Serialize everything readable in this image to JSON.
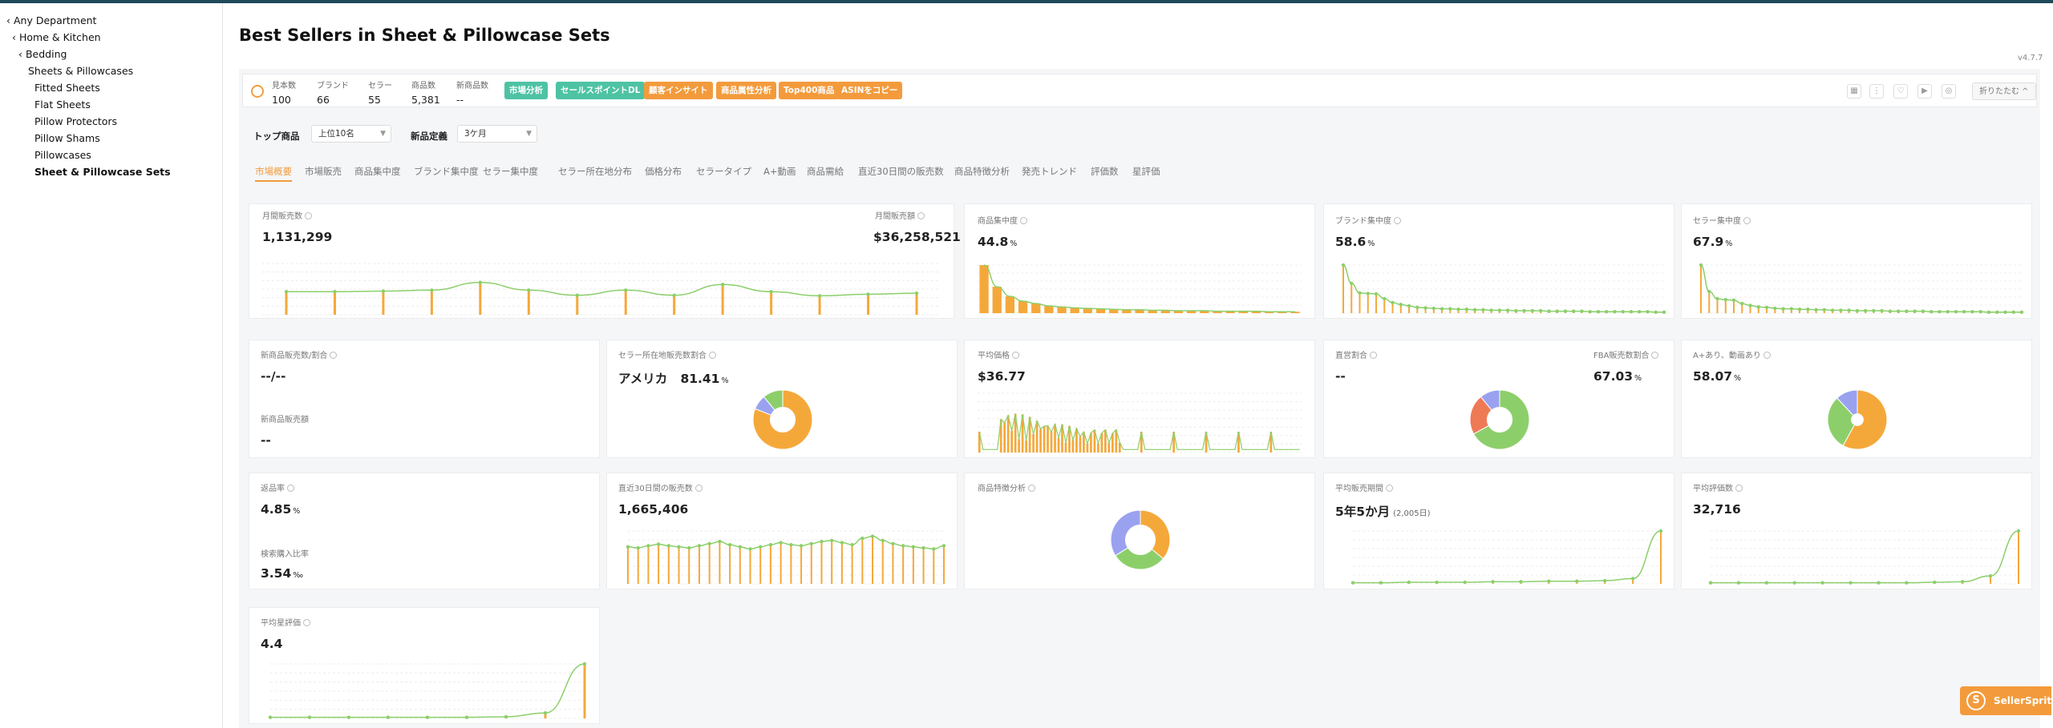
{
  "sidebar": {
    "items": [
      {
        "label": "‹ Any Department"
      },
      {
        "label": "‹ Home & Kitchen"
      },
      {
        "label": "‹ Bedding"
      },
      {
        "label": "Sheets & Pillowcases"
      },
      {
        "label": "Fitted Sheets"
      },
      {
        "label": "Flat Sheets"
      },
      {
        "label": "Pillow Protectors"
      },
      {
        "label": "Pillow Shams"
      },
      {
        "label": "Pillowcases"
      },
      {
        "label": "Sheet & Pillowcase Sets"
      }
    ]
  },
  "page": {
    "title": "Best Sellers in Sheet & Pillowcase Sets",
    "version": "v4.7.7"
  },
  "stats": [
    {
      "label": "見本数",
      "value": "100"
    },
    {
      "label": "ブランド",
      "value": "66"
    },
    {
      "label": "セラー",
      "value": "55"
    },
    {
      "label": "商品数",
      "value": "5,381"
    },
    {
      "label": "新商品数",
      "value": "--"
    }
  ],
  "tags": [
    {
      "label": "市場分析",
      "color": "#4ec3a4"
    },
    {
      "label": "セールスポイントDL",
      "color": "#4ec3a4"
    },
    {
      "label": "顧客インサイト",
      "color": "#f39b3c"
    },
    {
      "label": "商品属性分析",
      "color": "#f39b3c"
    },
    {
      "label": "Top400商品",
      "color": "#f39b3c"
    },
    {
      "label": "ASINをコピー",
      "color": "#f39b3c"
    }
  ],
  "toolbar": {
    "collapse": "折りたたむ ^"
  },
  "filters": {
    "top_label": "トップ商品",
    "top_value": "上位10名",
    "new_label": "新品定義",
    "new_value": "3ケ月"
  },
  "tabs": [
    "市場概要",
    "市場販売",
    "商品集中度",
    "ブランド集中度",
    "セラー集中度",
    "セラー所在地分布",
    "価格分布",
    "セラータイプ",
    "A+動画",
    "商品需給",
    "直近30日間の販売数",
    "商品特徴分析",
    "発売トレンド",
    "評価数",
    "星評価"
  ],
  "cards": {
    "monthly": {
      "label_left": "月間販売数",
      "value_left": "1,131,299",
      "label_right": "月間販売額",
      "value_right": "$36,258,521"
    },
    "product_conc": {
      "label": "商品集中度",
      "value": "44.8",
      "unit": "%"
    },
    "brand_conc": {
      "label": "ブランド集中度",
      "value": "58.6",
      "unit": "%"
    },
    "seller_conc": {
      "label": "セラー集中度",
      "value": "67.9",
      "unit": "%"
    },
    "new_product": {
      "label": "新商品販売数/割合",
      "value": "--/--",
      "label2": "新商品販売額",
      "value2": "--"
    },
    "seller_loc": {
      "label": "セラー所在地販売数割合",
      "value": "アメリカ",
      "pct": "81.41",
      "unit": "%"
    },
    "avg_price": {
      "label": "平均価格",
      "value": "$36.77"
    },
    "direct": {
      "label_left": "直営割合",
      "value_left": "--",
      "label_right": "FBA販売数割合",
      "value_right": "67.03",
      "unit": "%"
    },
    "aplus": {
      "label": "A+あり、動画あり",
      "value": "58.07",
      "unit": "%"
    },
    "return": {
      "label": "返品率",
      "value": "4.85",
      "unit": "%",
      "label2": "検索購入比率",
      "value2": "3.54",
      "unit2": "‰"
    },
    "sales30": {
      "label": "直近30日間の販売数",
      "value": "1,665,406"
    },
    "features": {
      "label": "商品特徴分析"
    },
    "avg_period": {
      "label": "平均販売期間",
      "value": "5年5か月",
      "sub": "(2,005日)"
    },
    "avg_reviews": {
      "label": "平均評価数",
      "value": "32,716"
    },
    "avg_rating": {
      "label": "平均星評価",
      "value": "4.4"
    }
  },
  "colors": {
    "orange": "#f5a83a",
    "green": "#8ccf6a",
    "purple": "#9aa2f0",
    "red": "#ee7a55"
  },
  "chart_data": [
    {
      "type": "bar",
      "name": "monthly",
      "values": [
        0.45,
        0.45,
        0.46,
        0.48,
        0.63,
        0.48,
        0.38,
        0.48,
        0.38,
        0.59,
        0.45,
        0.37,
        0.4,
        0.42
      ]
    },
    {
      "type": "bar",
      "name": "product_conc",
      "values": [
        1,
        0.55,
        0.35,
        0.25,
        0.2,
        0.15,
        0.13,
        0.11,
        0.1,
        0.09,
        0.08,
        0.07,
        0.07,
        0.06,
        0.06,
        0.05,
        0.05,
        0.05,
        0.04,
        0.04,
        0.04,
        0.04,
        0.03,
        0.03,
        0.03
      ]
    },
    {
      "type": "line",
      "name": "brand_conc",
      "values": [
        1,
        0.62,
        0.42,
        0.41,
        0.4,
        0.3,
        0.22,
        0.18,
        0.15,
        0.12,
        0.11,
        0.1,
        0.09,
        0.09,
        0.08,
        0.08,
        0.07,
        0.07,
        0.06,
        0.06,
        0.06,
        0.05,
        0.05,
        0.05,
        0.05,
        0.04,
        0.04,
        0.04,
        0.04,
        0.04,
        0.03,
        0.03,
        0.03,
        0.03,
        0.03,
        0.03,
        0.03,
        0.03,
        0.02,
        0.02
      ]
    },
    {
      "type": "line",
      "name": "seller_conc",
      "values": [
        1,
        0.45,
        0.3,
        0.28,
        0.27,
        0.2,
        0.16,
        0.13,
        0.12,
        0.1,
        0.09,
        0.09,
        0.08,
        0.08,
        0.07,
        0.07,
        0.06,
        0.06,
        0.06,
        0.05,
        0.05,
        0.05,
        0.05,
        0.04,
        0.04,
        0.04,
        0.04,
        0.04,
        0.03,
        0.03,
        0.03,
        0.03,
        0.03,
        0.03,
        0.03,
        0.02,
        0.02,
        0.02,
        0.02,
        0.02
      ]
    },
    {
      "type": "pie",
      "name": "seller_loc",
      "values": [
        0.81,
        0.08,
        0.11
      ]
    },
    {
      "type": "pie",
      "name": "direct",
      "values": [
        0.67,
        0.22,
        0.11
      ]
    },
    {
      "type": "pie",
      "name": "aplus",
      "values": [
        0.58,
        0.3,
        0.12
      ]
    },
    {
      "type": "pie",
      "name": "features",
      "values": [
        0.36,
        0.3,
        0.34
      ]
    },
    {
      "type": "line",
      "name": "sales30",
      "values": [
        0.7,
        0.68,
        0.72,
        0.75,
        0.72,
        0.7,
        0.68,
        0.72,
        0.76,
        0.8,
        0.74,
        0.7,
        0.66,
        0.7,
        0.74,
        0.78,
        0.74,
        0.72,
        0.76,
        0.8,
        0.82,
        0.78,
        0.74,
        0.86,
        0.9,
        0.82,
        0.76,
        0.72,
        0.7,
        0.68,
        0.66,
        0.72
      ]
    },
    {
      "type": "line",
      "name": "avg_period",
      "values": [
        0.02,
        0.02,
        0.03,
        0.03,
        0.03,
        0.04,
        0.04,
        0.05,
        0.05,
        0.06,
        0.1,
        1
      ]
    },
    {
      "type": "line",
      "name": "avg_reviews",
      "values": [
        0.02,
        0.02,
        0.02,
        0.02,
        0.02,
        0.02,
        0.02,
        0.02,
        0.03,
        0.04,
        0.15,
        1
      ]
    },
    {
      "type": "line",
      "name": "avg_rating",
      "values": [
        0.02,
        0.02,
        0.02,
        0.02,
        0.02,
        0.02,
        0.03,
        0.1,
        1
      ]
    }
  ]
}
